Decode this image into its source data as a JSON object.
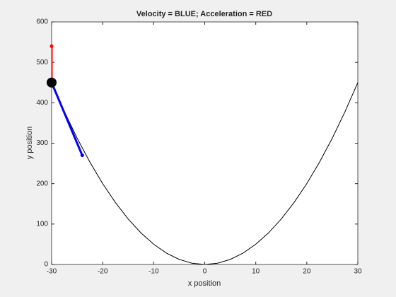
{
  "chart_data": {
    "type": "line",
    "title": "Velocity = BLUE;    Acceleration = RED",
    "xlabel": "x position",
    "ylabel": "y position",
    "xlim": [
      -30,
      30
    ],
    "xticks": [
      -30,
      -20,
      -10,
      0,
      10,
      20,
      30
    ],
    "ylim": [
      0,
      600
    ],
    "yticks": [
      0,
      100,
      200,
      300,
      400,
      500,
      600
    ],
    "grid": false,
    "series": [
      {
        "color": "#000000",
        "width": 1,
        "x": [
          -30,
          -27.5,
          -25,
          -22.5,
          -20,
          -17.5,
          -15,
          -12.5,
          -10,
          -7.5,
          -5,
          -2.5,
          0,
          2.5,
          5,
          7.5,
          10,
          12.5,
          15,
          17.5,
          20,
          22.5,
          25,
          27.5,
          30
        ],
        "values": [
          450,
          378.125,
          312.5,
          253.125,
          200,
          153.125,
          112.5,
          78.125,
          50,
          28.125,
          12.5,
          3.125,
          0,
          3.125,
          12.5,
          28.125,
          50,
          78.125,
          112.5,
          153.125,
          200,
          253.125,
          312.5,
          378.125,
          450
        ]
      },
      {
        "color": "#0000ff",
        "width": 3,
        "end_marker": true,
        "x": [
          -30,
          -24
        ],
        "values": [
          450,
          270
        ]
      },
      {
        "color": "#ff0000",
        "width": 3,
        "end_marker": true,
        "x": [
          -30,
          -30
        ],
        "values": [
          450,
          540
        ]
      },
      {
        "color": "#000000",
        "marker": "o",
        "x": [
          -30
        ],
        "values": [
          450
        ]
      }
    ]
  }
}
